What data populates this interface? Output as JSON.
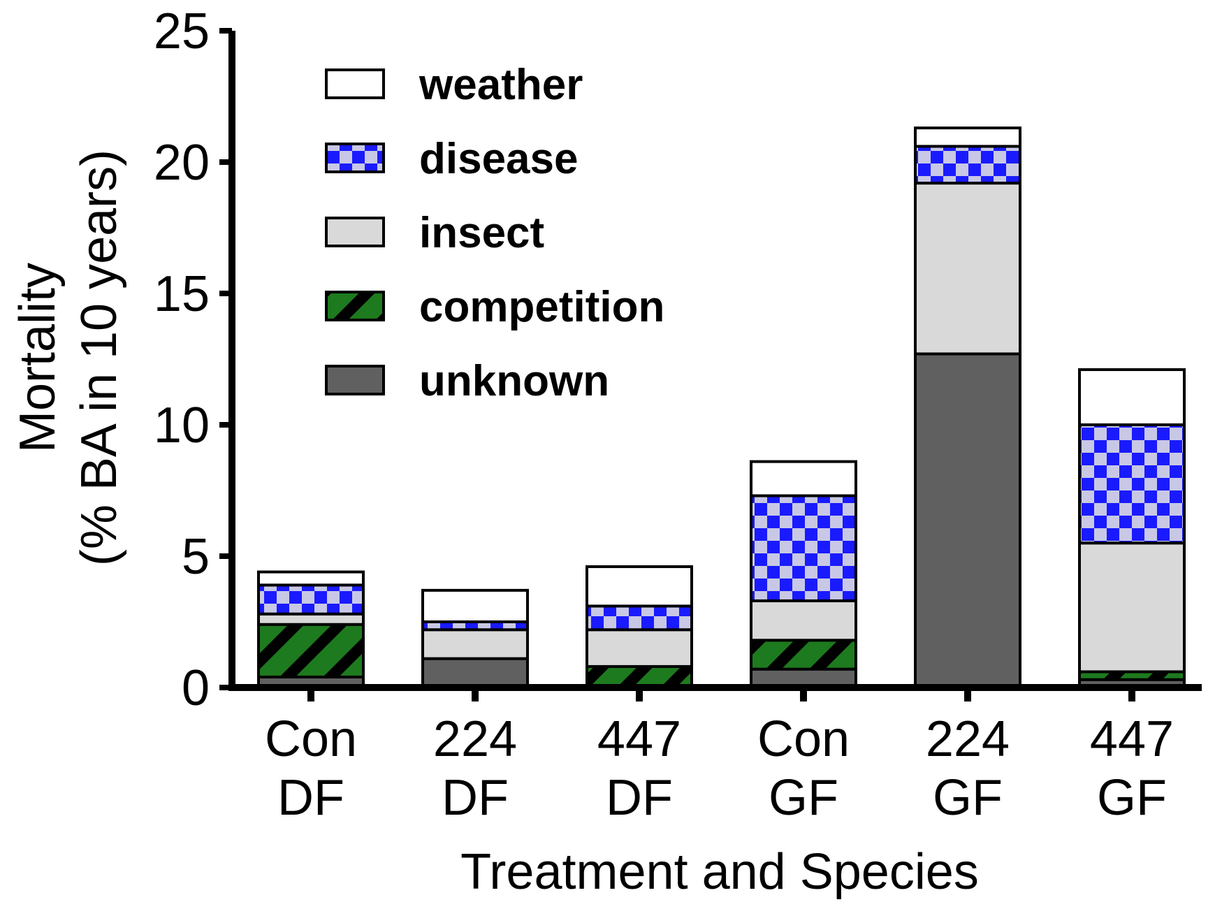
{
  "chart_data": {
    "type": "bar",
    "stacked": true,
    "title": "",
    "xlabel": "Treatment and Species",
    "ylabel_lines": [
      "Mortality",
      "(% BA in 10 years)"
    ],
    "ylim": [
      0,
      25
    ],
    "yticks": [
      0,
      5,
      10,
      15,
      20,
      25
    ],
    "ytick_labels": [
      "0",
      "5",
      "10",
      "15",
      "20",
      "25"
    ],
    "categories": [
      [
        "Con",
        "DF"
      ],
      [
        "224",
        "DF"
      ],
      [
        "447",
        "DF"
      ],
      [
        "Con",
        "GF"
      ],
      [
        "224",
        "GF"
      ],
      [
        "447",
        "GF"
      ]
    ],
    "series": [
      {
        "name": "unknown",
        "key": "unknown",
        "color": "#606060",
        "values": [
          0.4,
          1.1,
          0.0,
          0.7,
          12.7,
          0.3
        ]
      },
      {
        "name": "competition",
        "key": "competition",
        "color": "#1e7a1e",
        "values": [
          2.0,
          0.0,
          0.8,
          1.1,
          0.0,
          0.3
        ]
      },
      {
        "name": "insect",
        "key": "insect",
        "color": "#d9d9d9",
        "values": [
          0.4,
          1.1,
          1.4,
          1.5,
          6.5,
          4.9
        ]
      },
      {
        "name": "disease",
        "key": "disease",
        "color": "#1a1aff",
        "values": [
          1.1,
          0.3,
          0.9,
          4.0,
          1.4,
          4.5
        ]
      },
      {
        "name": "weather",
        "key": "weather",
        "color": "#ffffff",
        "values": [
          0.5,
          1.2,
          1.5,
          1.3,
          0.7,
          2.1
        ]
      }
    ],
    "legend": {
      "position": "top-left",
      "order": [
        "weather",
        "disease",
        "insect",
        "competition",
        "unknown"
      ]
    }
  }
}
